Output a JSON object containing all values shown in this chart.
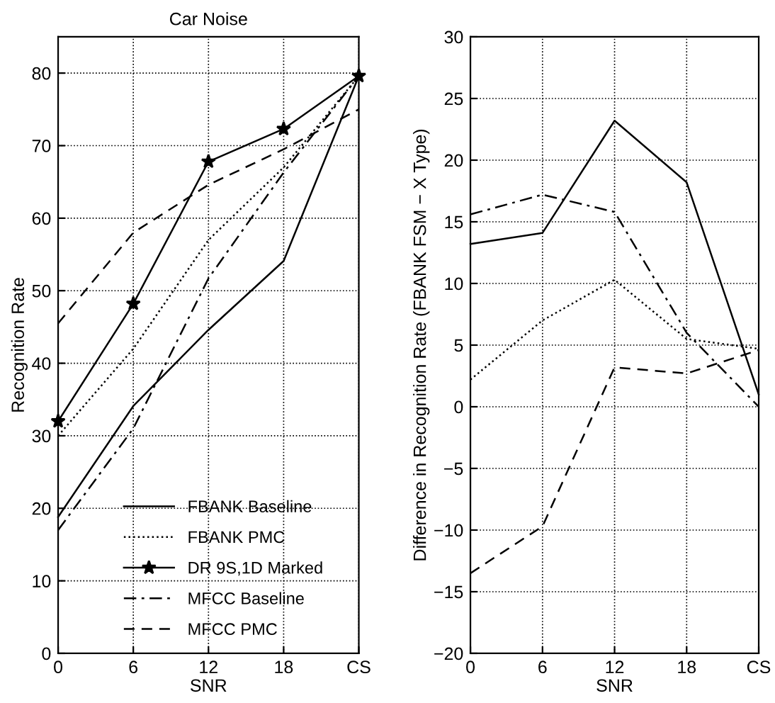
{
  "chart_data": [
    {
      "type": "line",
      "title": "Car Noise",
      "xlabel": "SNR",
      "ylabel": "Recognition Rate",
      "x": [
        0,
        6,
        12,
        18,
        24
      ],
      "xlim": [
        0,
        24
      ],
      "xticks": [
        0,
        6,
        12,
        18,
        {
          "value": 24,
          "label": "CS"
        }
      ],
      "ylim": [
        0,
        85
      ],
      "yticks": [
        0,
        10,
        20,
        30,
        40,
        50,
        60,
        70,
        80
      ],
      "grid": true,
      "legend": "bottom",
      "series": [
        {
          "name": "FBANK Baseline",
          "color": "#000000",
          "line_style": "solid",
          "values": [
            18.8,
            34.1,
            44.6,
            54.1,
            79.6
          ]
        },
        {
          "name": "FBANK PMC",
          "color": "#000000",
          "line_style": "dotted",
          "values": [
            30,
            42,
            57,
            67,
            79.6
          ]
        },
        {
          "name": "DR 9S,1D Marked",
          "color": "#000000",
          "line_style": "solid",
          "marker": "star",
          "values": [
            32,
            48.2,
            67.8,
            72.3,
            79.6
          ]
        },
        {
          "name": "MFCC Baseline",
          "color": "#000000",
          "line_style": "dashdot",
          "values": [
            17,
            31,
            51.7,
            66.3,
            79.6
          ]
        },
        {
          "name": "MFCC PMC",
          "color": "#000000",
          "line_style": "dashed",
          "values": [
            45.5,
            58,
            64.6,
            69.5,
            75
          ]
        }
      ]
    },
    {
      "type": "line",
      "xlabel": "SNR",
      "ylabel": "Difference in Recognition Rate (FBANK FSM − X Type)",
      "x": [
        0,
        6,
        12,
        18,
        24
      ],
      "xlim": [
        0,
        24
      ],
      "xticks": [
        0,
        6,
        12,
        18,
        {
          "value": 24,
          "label": "CS"
        }
      ],
      "ylim": [
        -20,
        30
      ],
      "yticks": [
        -20,
        -15,
        -10,
        -5,
        0,
        5,
        10,
        15,
        20,
        25,
        30
      ],
      "grid": true,
      "series": [
        {
          "color": "#000000",
          "line_style": "solid",
          "values": [
            13.2,
            14.1,
            23.2,
            18.2,
            1
          ]
        },
        {
          "color": "#000000",
          "line_style": "dotted",
          "values": [
            2.2,
            7,
            10.3,
            5.5,
            4.7
          ]
        },
        {
          "color": "#000000",
          "line_style": "dashdot",
          "values": [
            15.6,
            17.2,
            15.8,
            6,
            0
          ]
        },
        {
          "color": "#000000",
          "line_style": "dashed",
          "values": [
            -13.5,
            -9.7,
            3.2,
            2.7,
            4.6
          ]
        }
      ]
    }
  ]
}
